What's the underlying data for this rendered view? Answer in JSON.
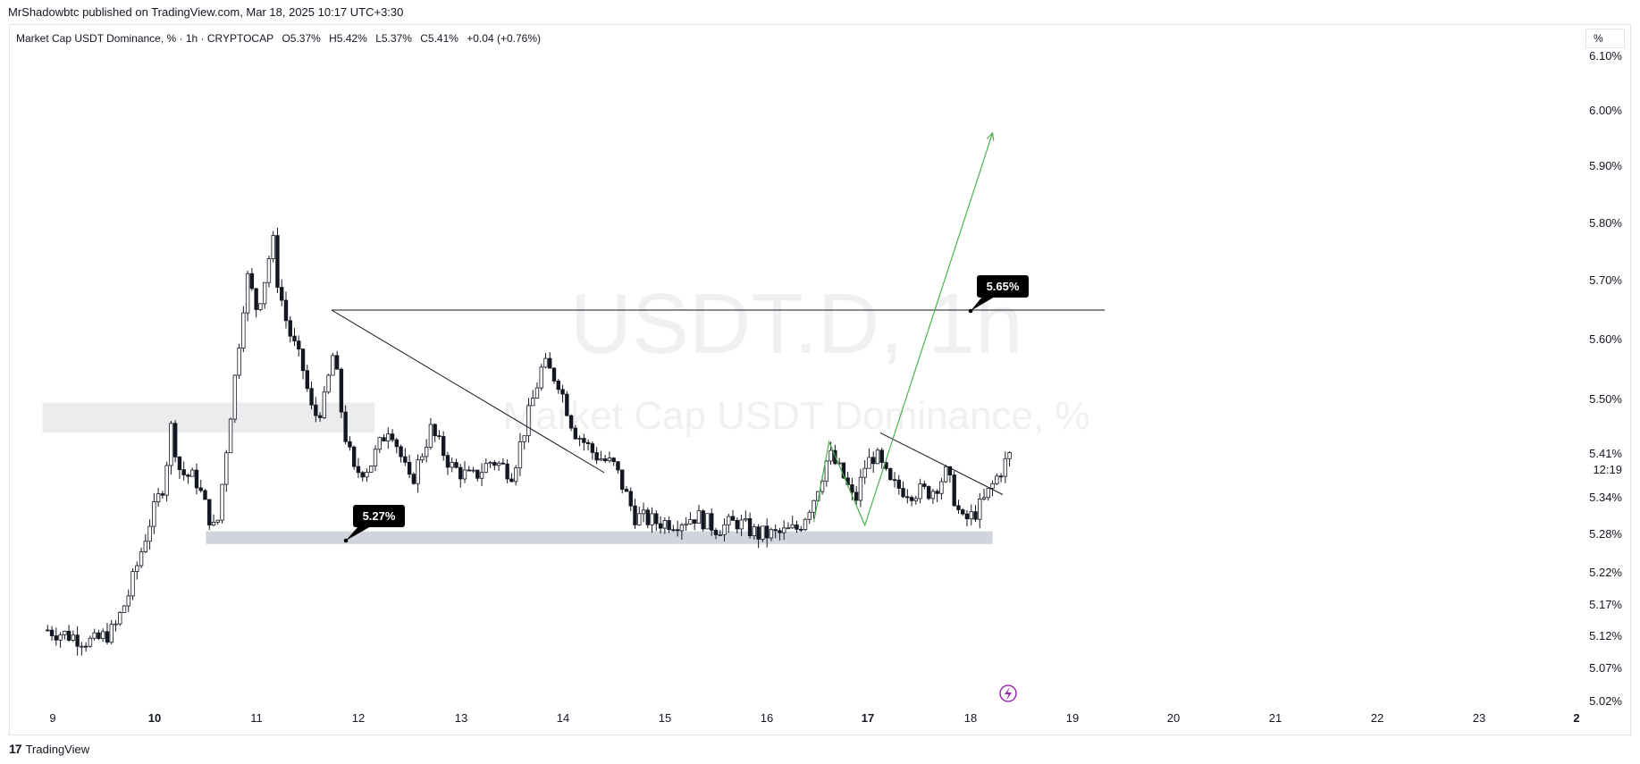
{
  "publish_line": "MrShadowbtc published on TradingView.com, Mar 18, 2025 10:17 UTC+3:30",
  "legend": {
    "title": "Market Cap USDT Dominance, % · 1h · CRYPTOCAP",
    "open": "O5.37%",
    "high": "H5.42%",
    "low": "L5.37%",
    "close": "C5.41%",
    "change": "+0.04 (+0.76%)"
  },
  "unit_label": "%",
  "watermark": {
    "symbol": "USDT.D, 1h",
    "name": "Market Cap USDT Dominance, %"
  },
  "footer": {
    "logo_text": "TradingView"
  },
  "colors": {
    "bull": "#131722",
    "bear": "#131722",
    "projection": "#4caf50",
    "zone": "#d1d4dc",
    "zone_light": "#ececef",
    "callout_bg": "#000000"
  },
  "chart_data": {
    "type": "candlestick",
    "title": "Market Cap USDT Dominance, %",
    "interval": "1h",
    "y_ticks": [
      "6.10%",
      "6.00%",
      "5.90%",
      "5.80%",
      "5.70%",
      "5.60%",
      "5.50%",
      "5.41%",
      "5.34%",
      "5.28%",
      "5.22%",
      "5.17%",
      "5.12%",
      "5.07%",
      "5.02%"
    ],
    "x_ticks": [
      "9",
      "10",
      "11",
      "12",
      "13",
      "14",
      "15",
      "16",
      "17",
      "18",
      "19",
      "20",
      "21",
      "22",
      "23",
      "2"
    ],
    "bold_x_ticks": [
      "10",
      "17",
      "2"
    ],
    "last_price_label": "5.41%",
    "countdown": "12:19",
    "ohlc_last": {
      "open": 5.37,
      "high": 5.42,
      "low": 5.37,
      "close": 5.41
    },
    "price_path": [
      [
        8.95,
        5.13
      ],
      [
        9.2,
        5.12
      ],
      [
        9.4,
        5.11
      ],
      [
        9.6,
        5.13
      ],
      [
        9.75,
        5.19
      ],
      [
        9.95,
        5.3
      ],
      [
        10.1,
        5.37
      ],
      [
        10.15,
        5.46
      ],
      [
        10.25,
        5.38
      ],
      [
        10.4,
        5.37
      ],
      [
        10.55,
        5.3
      ],
      [
        10.6,
        5.28
      ],
      [
        10.7,
        5.42
      ],
      [
        10.8,
        5.56
      ],
      [
        10.9,
        5.71
      ],
      [
        11.0,
        5.65
      ],
      [
        11.1,
        5.72
      ],
      [
        11.15,
        5.78
      ],
      [
        11.2,
        5.7
      ],
      [
        11.3,
        5.62
      ],
      [
        11.45,
        5.55
      ],
      [
        11.55,
        5.47
      ],
      [
        11.65,
        5.49
      ],
      [
        11.75,
        5.58
      ],
      [
        11.85,
        5.45
      ],
      [
        11.95,
        5.38
      ],
      [
        12.1,
        5.39
      ],
      [
        12.3,
        5.46
      ],
      [
        12.5,
        5.36
      ],
      [
        12.7,
        5.45
      ],
      [
        12.9,
        5.39
      ],
      [
        13.1,
        5.37
      ],
      [
        13.3,
        5.4
      ],
      [
        13.5,
        5.38
      ],
      [
        13.65,
        5.47
      ],
      [
        13.8,
        5.56
      ],
      [
        13.95,
        5.53
      ],
      [
        14.1,
        5.45
      ],
      [
        14.3,
        5.41
      ],
      [
        14.5,
        5.39
      ],
      [
        14.7,
        5.31
      ],
      [
        14.9,
        5.3
      ],
      [
        15.1,
        5.3
      ],
      [
        15.3,
        5.31
      ],
      [
        15.5,
        5.29
      ],
      [
        15.7,
        5.3
      ],
      [
        15.9,
        5.28
      ],
      [
        16.1,
        5.28
      ],
      [
        16.3,
        5.29
      ],
      [
        16.45,
        5.34
      ],
      [
        16.6,
        5.41
      ],
      [
        16.75,
        5.37
      ],
      [
        16.85,
        5.33
      ],
      [
        16.95,
        5.39
      ],
      [
        17.05,
        5.41
      ],
      [
        17.2,
        5.36
      ],
      [
        17.4,
        5.35
      ],
      [
        17.6,
        5.35
      ],
      [
        17.75,
        5.38
      ],
      [
        17.9,
        5.3
      ],
      [
        18.0,
        5.31
      ],
      [
        18.1,
        5.33
      ],
      [
        18.2,
        5.36
      ],
      [
        18.3,
        5.39
      ],
      [
        18.38,
        5.41
      ]
    ],
    "annotations": {
      "resistance_line": {
        "from": [
          11.73,
          5.65
        ],
        "to": [
          19.3,
          5.65
        ]
      },
      "resistance_label": "5.65%",
      "support_label": "5.27%",
      "support_zone": {
        "x": [
          10.5,
          18.2
        ],
        "y": [
          5.265,
          5.285
        ]
      },
      "supply_zone": {
        "x": [
          8.9,
          12.15
        ],
        "y": [
          5.445,
          5.495
        ]
      },
      "descending_line_1": {
        "from": [
          11.73,
          5.65
        ],
        "to": [
          14.4,
          5.38
        ]
      },
      "descending_line_2": {
        "from": [
          17.1,
          5.445
        ],
        "to": [
          18.3,
          5.345
        ]
      },
      "projection_path": [
        [
          16.45,
          5.3
        ],
        [
          16.6,
          5.43
        ],
        [
          16.95,
          5.295
        ],
        [
          17.35,
          5.5
        ],
        [
          18.2,
          5.96
        ]
      ]
    }
  }
}
